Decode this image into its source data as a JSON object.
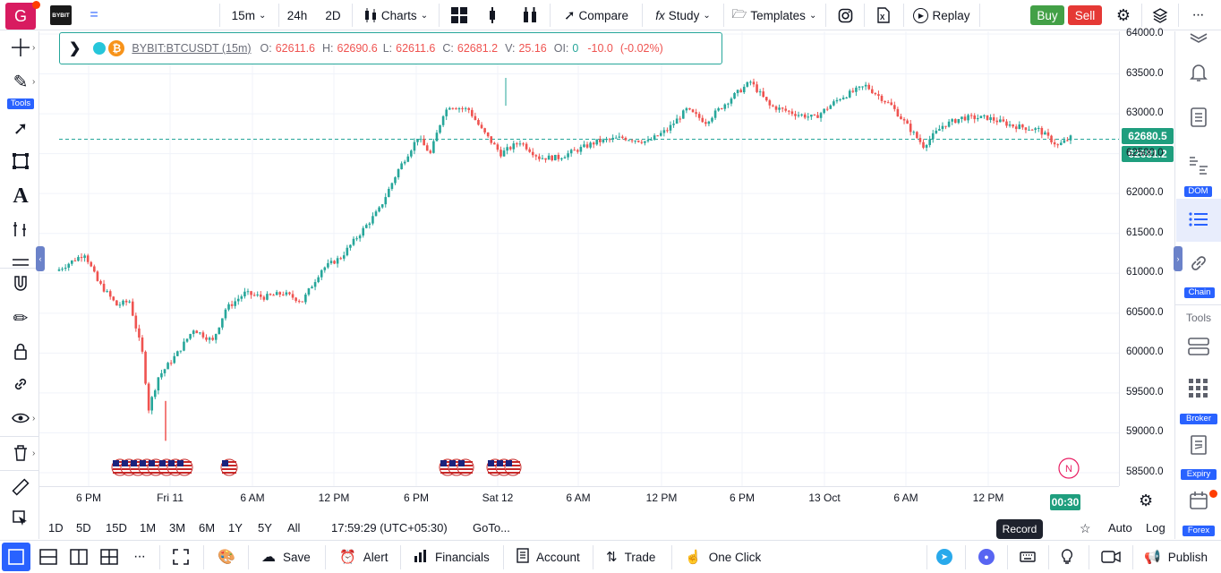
{
  "topbar": {
    "logo": "G",
    "exchange": "BYBIT",
    "interval": "15m",
    "range_24h": "24h",
    "range_2d": "2D",
    "charts": "Charts",
    "compare": "Compare",
    "study": "Study",
    "templates": "Templates",
    "replay": "Replay",
    "buy": "Buy",
    "sell": "Sell"
  },
  "legend": {
    "symbol": "BYBIT:BTCUSDT (15m)",
    "o_label": "O:",
    "o": "62611.6",
    "h_label": "H:",
    "h": "62690.6",
    "l_label": "L:",
    "l": "62611.6",
    "c_label": "C:",
    "c": "62681.2",
    "v_label": "V:",
    "v": "25.16",
    "oi_label": "OI:",
    "oi": "0",
    "change": "-10.0",
    "change_pct": "(-0.02%)"
  },
  "left_toolbar": {
    "tools_badge": "Tools"
  },
  "right_sidebar": {
    "dom": "DOM",
    "chain": "Chain",
    "tools": "Tools",
    "broker": "Broker",
    "expiry": "Expiry",
    "forex": "Forex"
  },
  "price_axis": {
    "labels": [
      "64000.0",
      "63500.0",
      "63000.0",
      "62500.0",
      "62000.0",
      "61500.0",
      "61000.0",
      "60500.0",
      "60000.0",
      "59500.0",
      "59000.0",
      "58500.0"
    ],
    "tag_upper": "62680.5",
    "tag_last": "62681.2"
  },
  "time_axis": {
    "labels": [
      "6 PM",
      "Fri 11",
      "6 AM",
      "12 PM",
      "6 PM",
      "Sat 12",
      "6 AM",
      "12 PM",
      "6 PM",
      "13 Oct",
      "6 AM",
      "12 PM"
    ],
    "countdown": "00:30"
  },
  "news_marker": "N",
  "range_bar": {
    "ranges": [
      "1D",
      "5D",
      "15D",
      "1M",
      "3M",
      "6M",
      "1Y",
      "5Y",
      "All"
    ],
    "clock": "17:59:29 (UTC+05:30)",
    "goto": "GoTo...",
    "auto": "Auto",
    "log": "Log"
  },
  "bottom_bar": {
    "save": "Save",
    "alert": "Alert",
    "financials": "Financials",
    "account": "Account",
    "trade": "Trade",
    "one_click": "One Click",
    "publish": "Publish",
    "record_tooltip": "Record"
  },
  "colors": {
    "up": "#26a69a",
    "down": "#ef5350",
    "accent": "#2962ff",
    "price_tag": "#1f9e7e"
  },
  "chart_data": {
    "type": "candlestick",
    "symbol": "BYBIT:BTCUSDT",
    "interval": "15m",
    "ylim": [
      58350,
      64100
    ],
    "x_ticks": [
      "6 PM",
      "Fri 11",
      "6 AM",
      "12 PM",
      "6 PM",
      "Sat 12",
      "6 AM",
      "12 PM",
      "6 PM",
      "13 Oct",
      "6 AM",
      "12 PM"
    ],
    "last_price": 62681.2,
    "close_path": [
      [
        0,
        61050
      ],
      [
        8,
        61250
      ],
      [
        12,
        60900
      ],
      [
        18,
        60600
      ],
      [
        22,
        60650
      ],
      [
        26,
        60000
      ],
      [
        28,
        59300
      ],
      [
        31,
        59700
      ],
      [
        37,
        60000
      ],
      [
        42,
        60300
      ],
      [
        48,
        60150
      ],
      [
        52,
        60550
      ],
      [
        58,
        60750
      ],
      [
        64,
        60700
      ],
      [
        70,
        60750
      ],
      [
        76,
        60650
      ],
      [
        82,
        61050
      ],
      [
        88,
        61200
      ],
      [
        94,
        61500
      ],
      [
        100,
        61800
      ],
      [
        106,
        62300
      ],
      [
        112,
        62700
      ],
      [
        116,
        62500
      ],
      [
        120,
        63000
      ],
      [
        122,
        63100
      ],
      [
        128,
        63050
      ],
      [
        132,
        62800
      ],
      [
        138,
        62500
      ],
      [
        144,
        62650
      ],
      [
        150,
        62450
      ],
      [
        156,
        62450
      ],
      [
        162,
        62550
      ],
      [
        168,
        62650
      ],
      [
        176,
        62700
      ],
      [
        184,
        62650
      ],
      [
        190,
        62800
      ],
      [
        196,
        63050
      ],
      [
        202,
        62900
      ],
      [
        210,
        63200
      ],
      [
        216,
        63400
      ],
      [
        222,
        63100
      ],
      [
        230,
        63000
      ],
      [
        236,
        62950
      ],
      [
        244,
        63200
      ],
      [
        252,
        63350
      ],
      [
        260,
        63100
      ],
      [
        264,
        62900
      ],
      [
        270,
        62600
      ],
      [
        276,
        62850
      ],
      [
        282,
        62950
      ],
      [
        290,
        62950
      ],
      [
        298,
        62850
      ],
      [
        306,
        62800
      ],
      [
        312,
        62600
      ],
      [
        316,
        62700
      ]
    ]
  }
}
